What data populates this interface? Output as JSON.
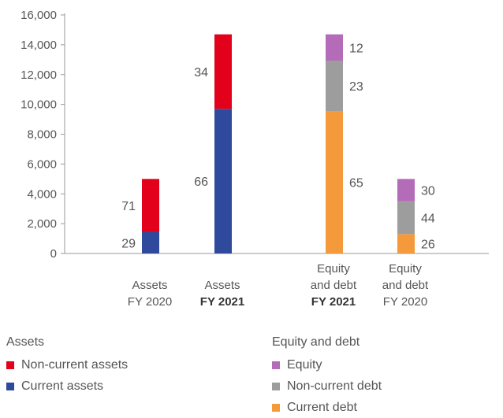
{
  "chart_data": {
    "type": "bar",
    "stacked": true,
    "ylim": [
      0,
      16000
    ],
    "yticks": [
      "0",
      "2,000",
      "4,000",
      "6,000",
      "8,000",
      "10,000",
      "12,000",
      "14,000",
      "16,000"
    ],
    "grid": false,
    "bars": [
      {
        "label_lines": [
          {
            "text": "Assets",
            "bold": false
          },
          {
            "text": "FY 2020",
            "bold": false
          }
        ],
        "total": 5000,
        "segments": [
          {
            "series": "Current assets",
            "percent": 29,
            "label": "29"
          },
          {
            "series": "Non-current assets",
            "percent": 71,
            "label": "71"
          }
        ],
        "label_side": "left"
      },
      {
        "label_lines": [
          {
            "text": "Assets",
            "bold": false
          },
          {
            "text": "FY 2021",
            "bold": true
          }
        ],
        "total": 14700,
        "segments": [
          {
            "series": "Current assets",
            "percent": 66,
            "label": "66"
          },
          {
            "series": "Non-current assets",
            "percent": 34,
            "label": "34"
          }
        ],
        "label_side": "left"
      },
      {
        "label_lines": [
          {
            "text": "Equity",
            "bold": false
          },
          {
            "text": "and debt",
            "bold": false
          },
          {
            "text": "FY 2021",
            "bold": true
          }
        ],
        "total": 14700,
        "segments": [
          {
            "series": "Current debt",
            "percent": 65,
            "label": "65"
          },
          {
            "series": "Non-current debt",
            "percent": 23,
            "label": "23"
          },
          {
            "series": "Equity",
            "percent": 12,
            "label": "12"
          }
        ],
        "label_side": "right"
      },
      {
        "label_lines": [
          {
            "text": "Equity",
            "bold": false
          },
          {
            "text": "and debt",
            "bold": false
          },
          {
            "text": "FY 2020",
            "bold": false
          }
        ],
        "total": 5000,
        "segments": [
          {
            "series": "Current debt",
            "percent": 26,
            "label": "26"
          },
          {
            "series": "Non-current debt",
            "percent": 44,
            "label": "44"
          },
          {
            "series": "Equity",
            "percent": 30,
            "label": "30"
          }
        ],
        "label_side": "right"
      }
    ],
    "colors": {
      "Non-current assets": "#e3001b",
      "Current assets": "#2f4a9c",
      "Equity": "#b46bb8",
      "Non-current debt": "#9d9d9d",
      "Current debt": "#f59a3a"
    },
    "legend_placement": "bottom"
  },
  "legend": {
    "assets": {
      "title": "Assets",
      "items": [
        {
          "label": "Non-current assets",
          "color": "#e3001b"
        },
        {
          "label": "Current assets",
          "color": "#2f4a9c"
        }
      ]
    },
    "equity_debt": {
      "title": "Equity and debt",
      "items": [
        {
          "label": "Equity",
          "color": "#b46bb8"
        },
        {
          "label": "Non-current debt",
          "color": "#9d9d9d"
        },
        {
          "label": "Current debt",
          "color": "#f59a3a"
        }
      ]
    }
  }
}
